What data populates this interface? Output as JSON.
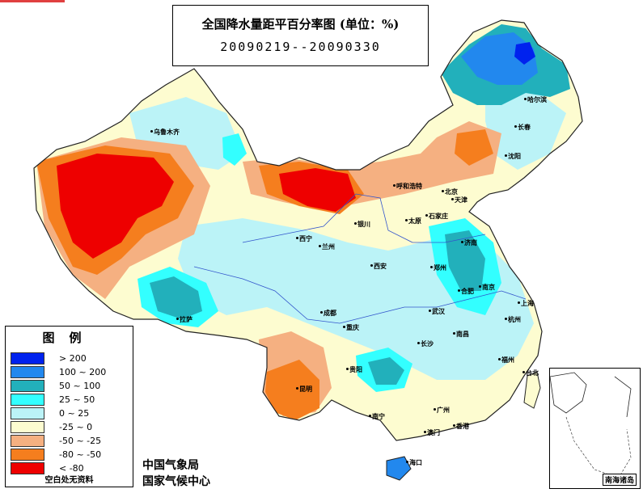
{
  "title": "全国降水量距平百分率图 (单位：%)",
  "date_range": "20090219--20090330",
  "legend": {
    "title": "图例",
    "items": [
      {
        "label": "> 200",
        "color": "#0022ee"
      },
      {
        "label": "100 ~ 200",
        "color": "#2288ee"
      },
      {
        "label": "50 ~ 100",
        "color": "#22b0bb"
      },
      {
        "label": "25 ~ 50",
        "color": "#33ffff"
      },
      {
        "label": "0 ~ 25",
        "color": "#bbf3f7"
      },
      {
        "label": "-25 ~ 0",
        "color": "#fdfcd0"
      },
      {
        "label": "-50 ~ -25",
        "color": "#f5b081"
      },
      {
        "label": "-80 ~ -50",
        "color": "#f57e1e"
      },
      {
        "label": "< -80",
        "color": "#ee0000"
      }
    ],
    "note": "空白处无资料"
  },
  "agency_1": "中国气象局",
  "agency_2": "国家气候中心",
  "inset_label": "南海诸岛",
  "cities": [
    "乌鲁木齐",
    "哈尔滨",
    "长春",
    "沈阳",
    "呼和浩特",
    "北京",
    "天津",
    "太原",
    "石家庄",
    "银川",
    "西宁",
    "兰州",
    "济南",
    "郑州",
    "西安",
    "合肥",
    "南京",
    "上海",
    "武汉",
    "杭州",
    "成都",
    "重庆",
    "拉萨",
    "南昌",
    "长沙",
    "福州",
    "贵阳",
    "台北",
    "昆明",
    "南宁",
    "广州",
    "香港",
    "澳门",
    "海口"
  ]
}
